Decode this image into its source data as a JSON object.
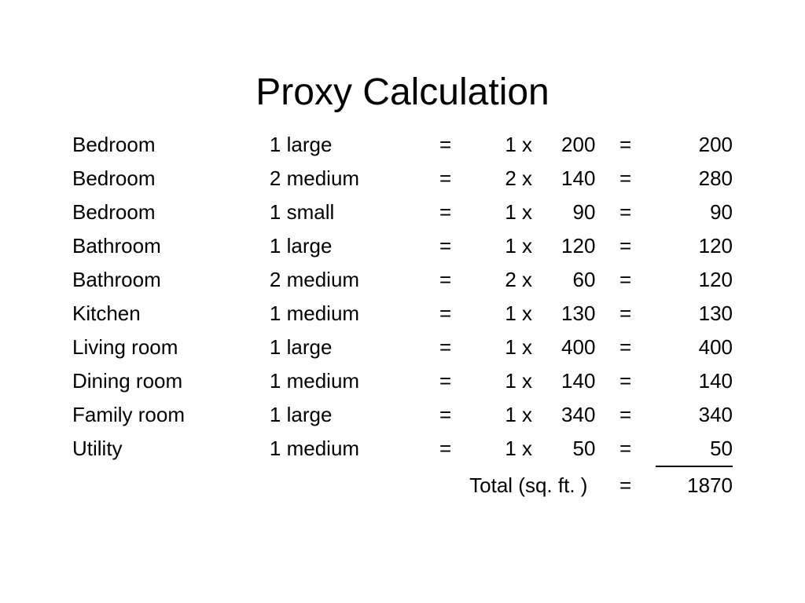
{
  "title": "Proxy Calculation",
  "rows": [
    {
      "room": "Bedroom",
      "spec": "1 large",
      "eq1": "=",
      "mult": "1 x",
      "unit": "200",
      "eq2": "=",
      "result": "200"
    },
    {
      "room": "Bedroom",
      "spec": "2 medium",
      "eq1": "=",
      "mult": "2 x",
      "unit": "140",
      "eq2": "=",
      "result": "280"
    },
    {
      "room": "Bedroom",
      "spec": "1 small",
      "eq1": "=",
      "mult": "1 x",
      "unit": "90",
      "eq2": "=",
      "result": "90"
    },
    {
      "room": "Bathroom",
      "spec": "1 large",
      "eq1": "=",
      "mult": "1 x",
      "unit": "120",
      "eq2": "=",
      "result": "120"
    },
    {
      "room": "Bathroom",
      "spec": "2 medium",
      "eq1": "=",
      "mult": "2 x",
      "unit": "60",
      "eq2": "=",
      "result": "120"
    },
    {
      "room": "Kitchen",
      "spec": "1 medium",
      "eq1": "=",
      "mult": "1 x",
      "unit": "130",
      "eq2": "=",
      "result": "130"
    },
    {
      "room": "Living room",
      "spec": "1 large",
      "eq1": "=",
      "mult": "1 x",
      "unit": "400",
      "eq2": "=",
      "result": "400"
    },
    {
      "room": "Dining room",
      "spec": "1 medium",
      "eq1": "=",
      "mult": "1 x",
      "unit": "140",
      "eq2": "=",
      "result": "140"
    },
    {
      "room": "Family room",
      "spec": "1 large",
      "eq1": "=",
      "mult": "1 x",
      "unit": "340",
      "eq2": "=",
      "result": "340"
    },
    {
      "room": "Utility",
      "spec": "1 medium",
      "eq1": "=",
      "mult": "1 x",
      "unit": "50",
      "eq2": "=",
      "result": "50"
    }
  ],
  "total": {
    "label": "Total (sq. ft. )",
    "eq": "=",
    "value": "1870"
  },
  "styling": {
    "background_color": "#ffffff",
    "text_color": "#000000",
    "font_family": "Arial",
    "title_fontsize": 48,
    "body_fontsize": 26,
    "total_border_color": "#000000"
  }
}
